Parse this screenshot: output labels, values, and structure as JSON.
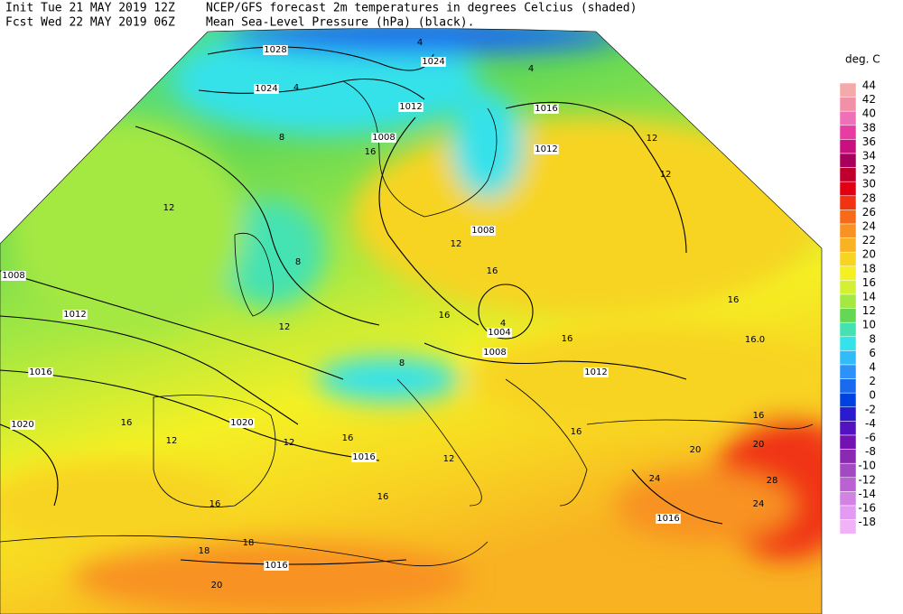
{
  "header": {
    "init": "Init  Tue 21 MAY 2019 12Z",
    "fcst": "Fcst Wed 22 MAY 2019 06Z",
    "title_line1": "NCEP/GFS forecast 2m temperatures in degrees Celcius (shaded)",
    "title_line2": "Mean Sea-Level Pressure (hPa) (black)."
  },
  "legend": {
    "unit": "deg. C",
    "levels": [
      {
        "value": 44,
        "color": "#f4aaaa"
      },
      {
        "value": 42,
        "color": "#f290a8"
      },
      {
        "value": 40,
        "color": "#f070b8"
      },
      {
        "value": 38,
        "color": "#e83ca2"
      },
      {
        "value": 36,
        "color": "#c8107e"
      },
      {
        "value": 34,
        "color": "#a8005c"
      },
      {
        "value": 32,
        "color": "#c0002c"
      },
      {
        "value": 30,
        "color": "#e00012"
      },
      {
        "value": 28,
        "color": "#f03412"
      },
      {
        "value": 26,
        "color": "#f86a18"
      },
      {
        "value": 24,
        "color": "#f89222"
      },
      {
        "value": 22,
        "color": "#f8b222"
      },
      {
        "value": 20,
        "color": "#f8d422"
      },
      {
        "value": 18,
        "color": "#f4f024"
      },
      {
        "value": 16,
        "color": "#d4f032"
      },
      {
        "value": 14,
        "color": "#a4e842"
      },
      {
        "value": 12,
        "color": "#64d854"
      },
      {
        "value": 10,
        "color": "#44e2b2"
      },
      {
        "value": 8,
        "color": "#34e2ea"
      },
      {
        "value": 6,
        "color": "#30bcf8"
      },
      {
        "value": 4,
        "color": "#2a92f8"
      },
      {
        "value": 2,
        "color": "#1a6af0"
      },
      {
        "value": 0,
        "color": "#0042e0"
      },
      {
        "value": -2,
        "color": "#2a1ad0"
      },
      {
        "value": -4,
        "color": "#5212c0"
      },
      {
        "value": -6,
        "color": "#7212b2"
      },
      {
        "value": -8,
        "color": "#8a2ab2"
      },
      {
        "value": -10,
        "color": "#a24ac2"
      },
      {
        "value": -12,
        "color": "#ba62d2"
      },
      {
        "value": -14,
        "color": "#d282e2"
      },
      {
        "value": -16,
        "color": "#e29af2"
      },
      {
        "value": -18,
        "color": "#f2b2f8"
      }
    ]
  },
  "map": {
    "isobar_labels": [
      "1028",
      "1024",
      "1024",
      "1012",
      "1008",
      "1016",
      "1012",
      "1008",
      "1008",
      "1012",
      "1016",
      "1020",
      "1020",
      "1016",
      "1004",
      "1008",
      "1012",
      "1016",
      "1016"
    ],
    "temperature_labels": [
      "4",
      "4",
      "4",
      "8",
      "12",
      "16",
      "12",
      "12",
      "16",
      "16.0",
      "16",
      "8",
      "16",
      "16",
      "20",
      "20",
      "24",
      "28",
      "24",
      "16",
      "12",
      "12",
      "16",
      "16",
      "16",
      "12",
      "16",
      "18",
      "18",
      "20",
      "16",
      "12",
      "12",
      "8",
      "4"
    ]
  }
}
